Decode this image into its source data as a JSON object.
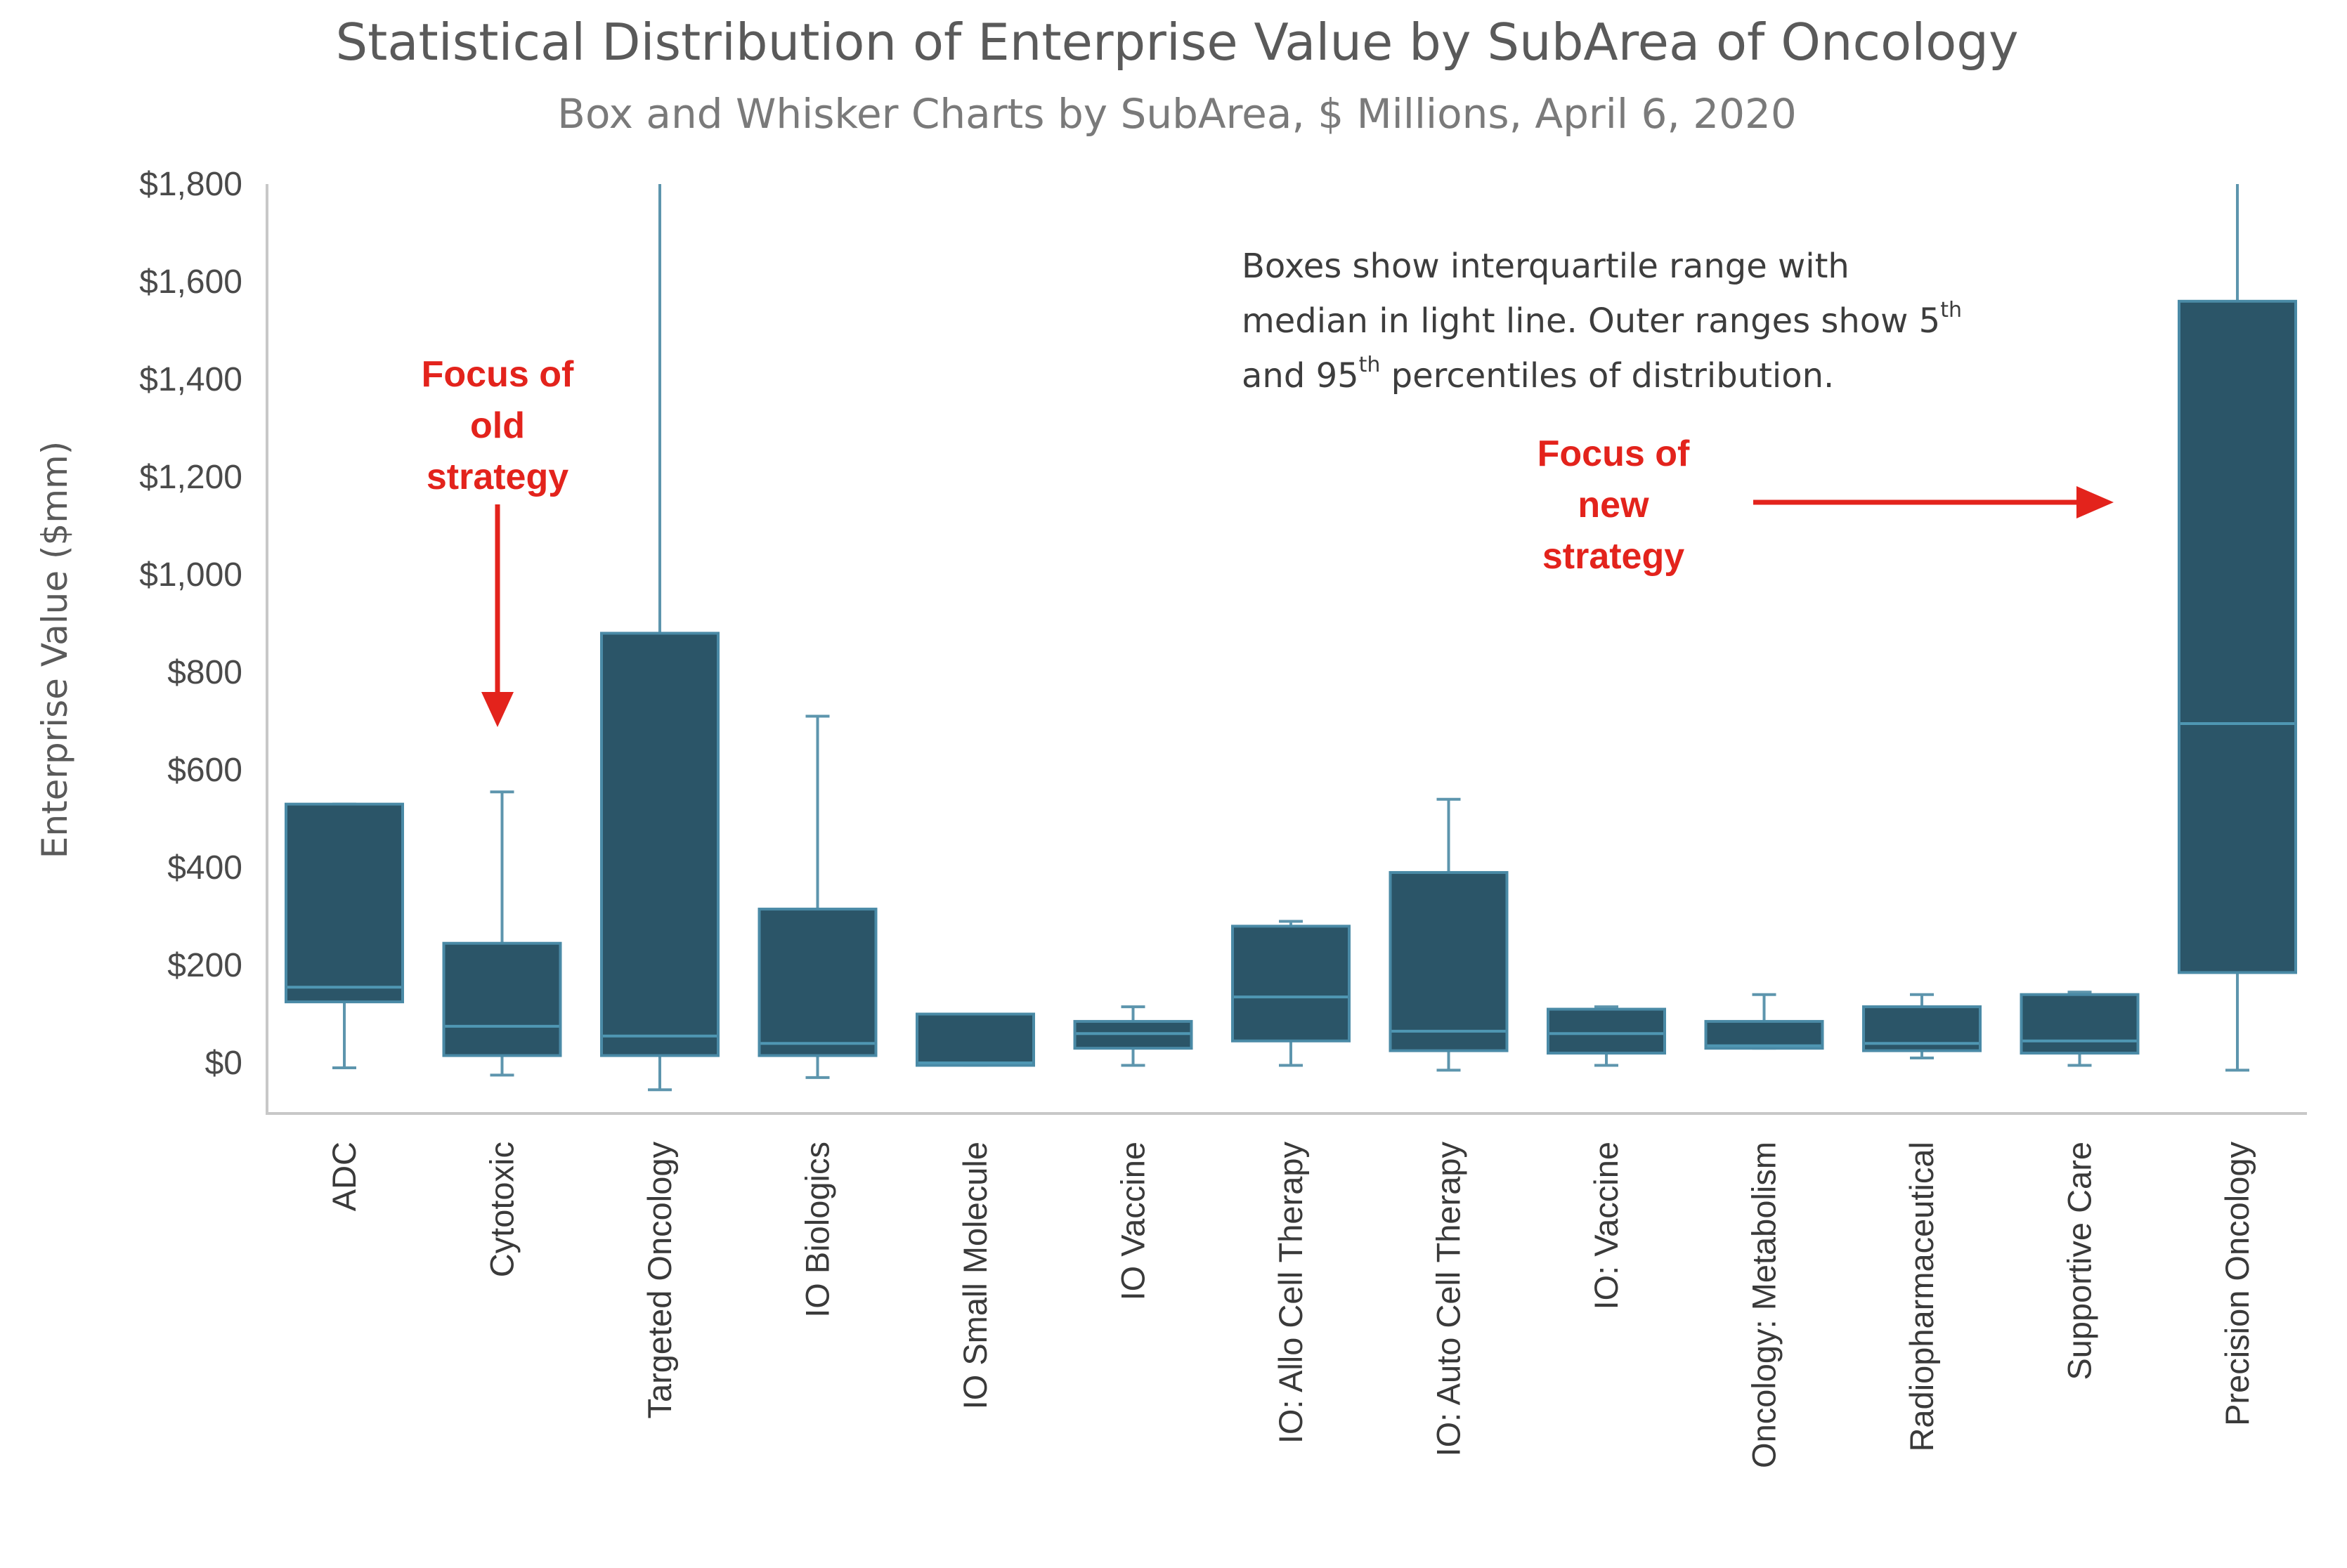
{
  "chart_data": {
    "type": "box",
    "title": "Statistical Distribution of Enterprise Value by SubArea of Oncology",
    "subtitle": "Box and Whisker Charts by SubArea, $ Millions, April 6, 2020",
    "ylabel": "Enterprise Value ($mm)",
    "xlabel": "",
    "ylim": [
      -100,
      1800
    ],
    "yticks": [
      0,
      200,
      400,
      600,
      800,
      1000,
      1200,
      1400,
      1600,
      1800
    ],
    "ytick_labels": [
      "$0",
      "$200",
      "$400",
      "$600",
      "$800",
      "$1,000",
      "$1,200",
      "$1,400",
      "$1,600",
      "$1,800"
    ],
    "grid": false,
    "legend": "none",
    "colors": {
      "box_fill": "#2b5568",
      "box_edge": "#4a8aa6",
      "median": "#4f97b3",
      "whisker": "#5d95ad",
      "callout": "#e3231c"
    },
    "categories": [
      "ADC",
      "Cytotoxic",
      "Targeted Oncology",
      "IO Biologics",
      "IO Small Molecule",
      "IO Vaccine",
      "IO: Allo Cell Therapy",
      "IO: Auto Cell Therapy",
      "IO: Vaccine",
      "Oncology: Metabolism",
      "Radiopharmaceutical",
      "Supportive Care",
      "Precision Oncology"
    ],
    "boxes": [
      {
        "category": "ADC",
        "p5": -10,
        "q1": 125,
        "median": 155,
        "q3": 530,
        "p95": 530
      },
      {
        "category": "Cytotoxic",
        "p5": -25,
        "q1": 15,
        "median": 75,
        "q3": 245,
        "p95": 555
      },
      {
        "category": "Targeted Oncology",
        "p5": -55,
        "q1": 15,
        "median": 55,
        "q3": 880,
        "p95": 1800
      },
      {
        "category": "IO Biologics",
        "p5": -30,
        "q1": 15,
        "median": 40,
        "q3": 315,
        "p95": 710
      },
      {
        "category": "IO Small Molecule",
        "p5": -5,
        "q1": -5,
        "median": 0,
        "q3": 100,
        "p95": 100
      },
      {
        "category": "IO Vaccine",
        "p5": -5,
        "q1": 30,
        "median": 60,
        "q3": 85,
        "p95": 115
      },
      {
        "category": "IO: Allo Cell Therapy",
        "p5": -5,
        "q1": 45,
        "median": 135,
        "q3": 280,
        "p95": 290
      },
      {
        "category": "IO: Auto Cell Therapy",
        "p5": -15,
        "q1": 25,
        "median": 65,
        "q3": 390,
        "p95": 540
      },
      {
        "category": "IO: Vaccine",
        "p5": -5,
        "q1": 20,
        "median": 60,
        "q3": 110,
        "p95": 115
      },
      {
        "category": "Oncology: Metabolism",
        "p5": 30,
        "q1": 30,
        "median": 35,
        "q3": 85,
        "p95": 140
      },
      {
        "category": "Radiopharmaceutical",
        "p5": 10,
        "q1": 25,
        "median": 40,
        "q3": 115,
        "p95": 140
      },
      {
        "category": "Supportive Care",
        "p5": -5,
        "q1": 20,
        "median": 45,
        "q3": 140,
        "p95": 145
      },
      {
        "category": "Precision Oncology",
        "p5": -15,
        "q1": 185,
        "median": 695,
        "q3": 1560,
        "p95": 1800
      }
    ],
    "annotations": {
      "note_lines": [
        "Boxes show interquartile range with",
        "median in light line. Outer ranges show 5",
        "and 95",
        " percentiles of distribution."
      ],
      "note_sup": [
        "th",
        "th"
      ],
      "callout_old": [
        "Focus of",
        "old",
        "strategy"
      ],
      "callout_new": [
        "Focus of",
        "new",
        "strategy"
      ]
    }
  }
}
